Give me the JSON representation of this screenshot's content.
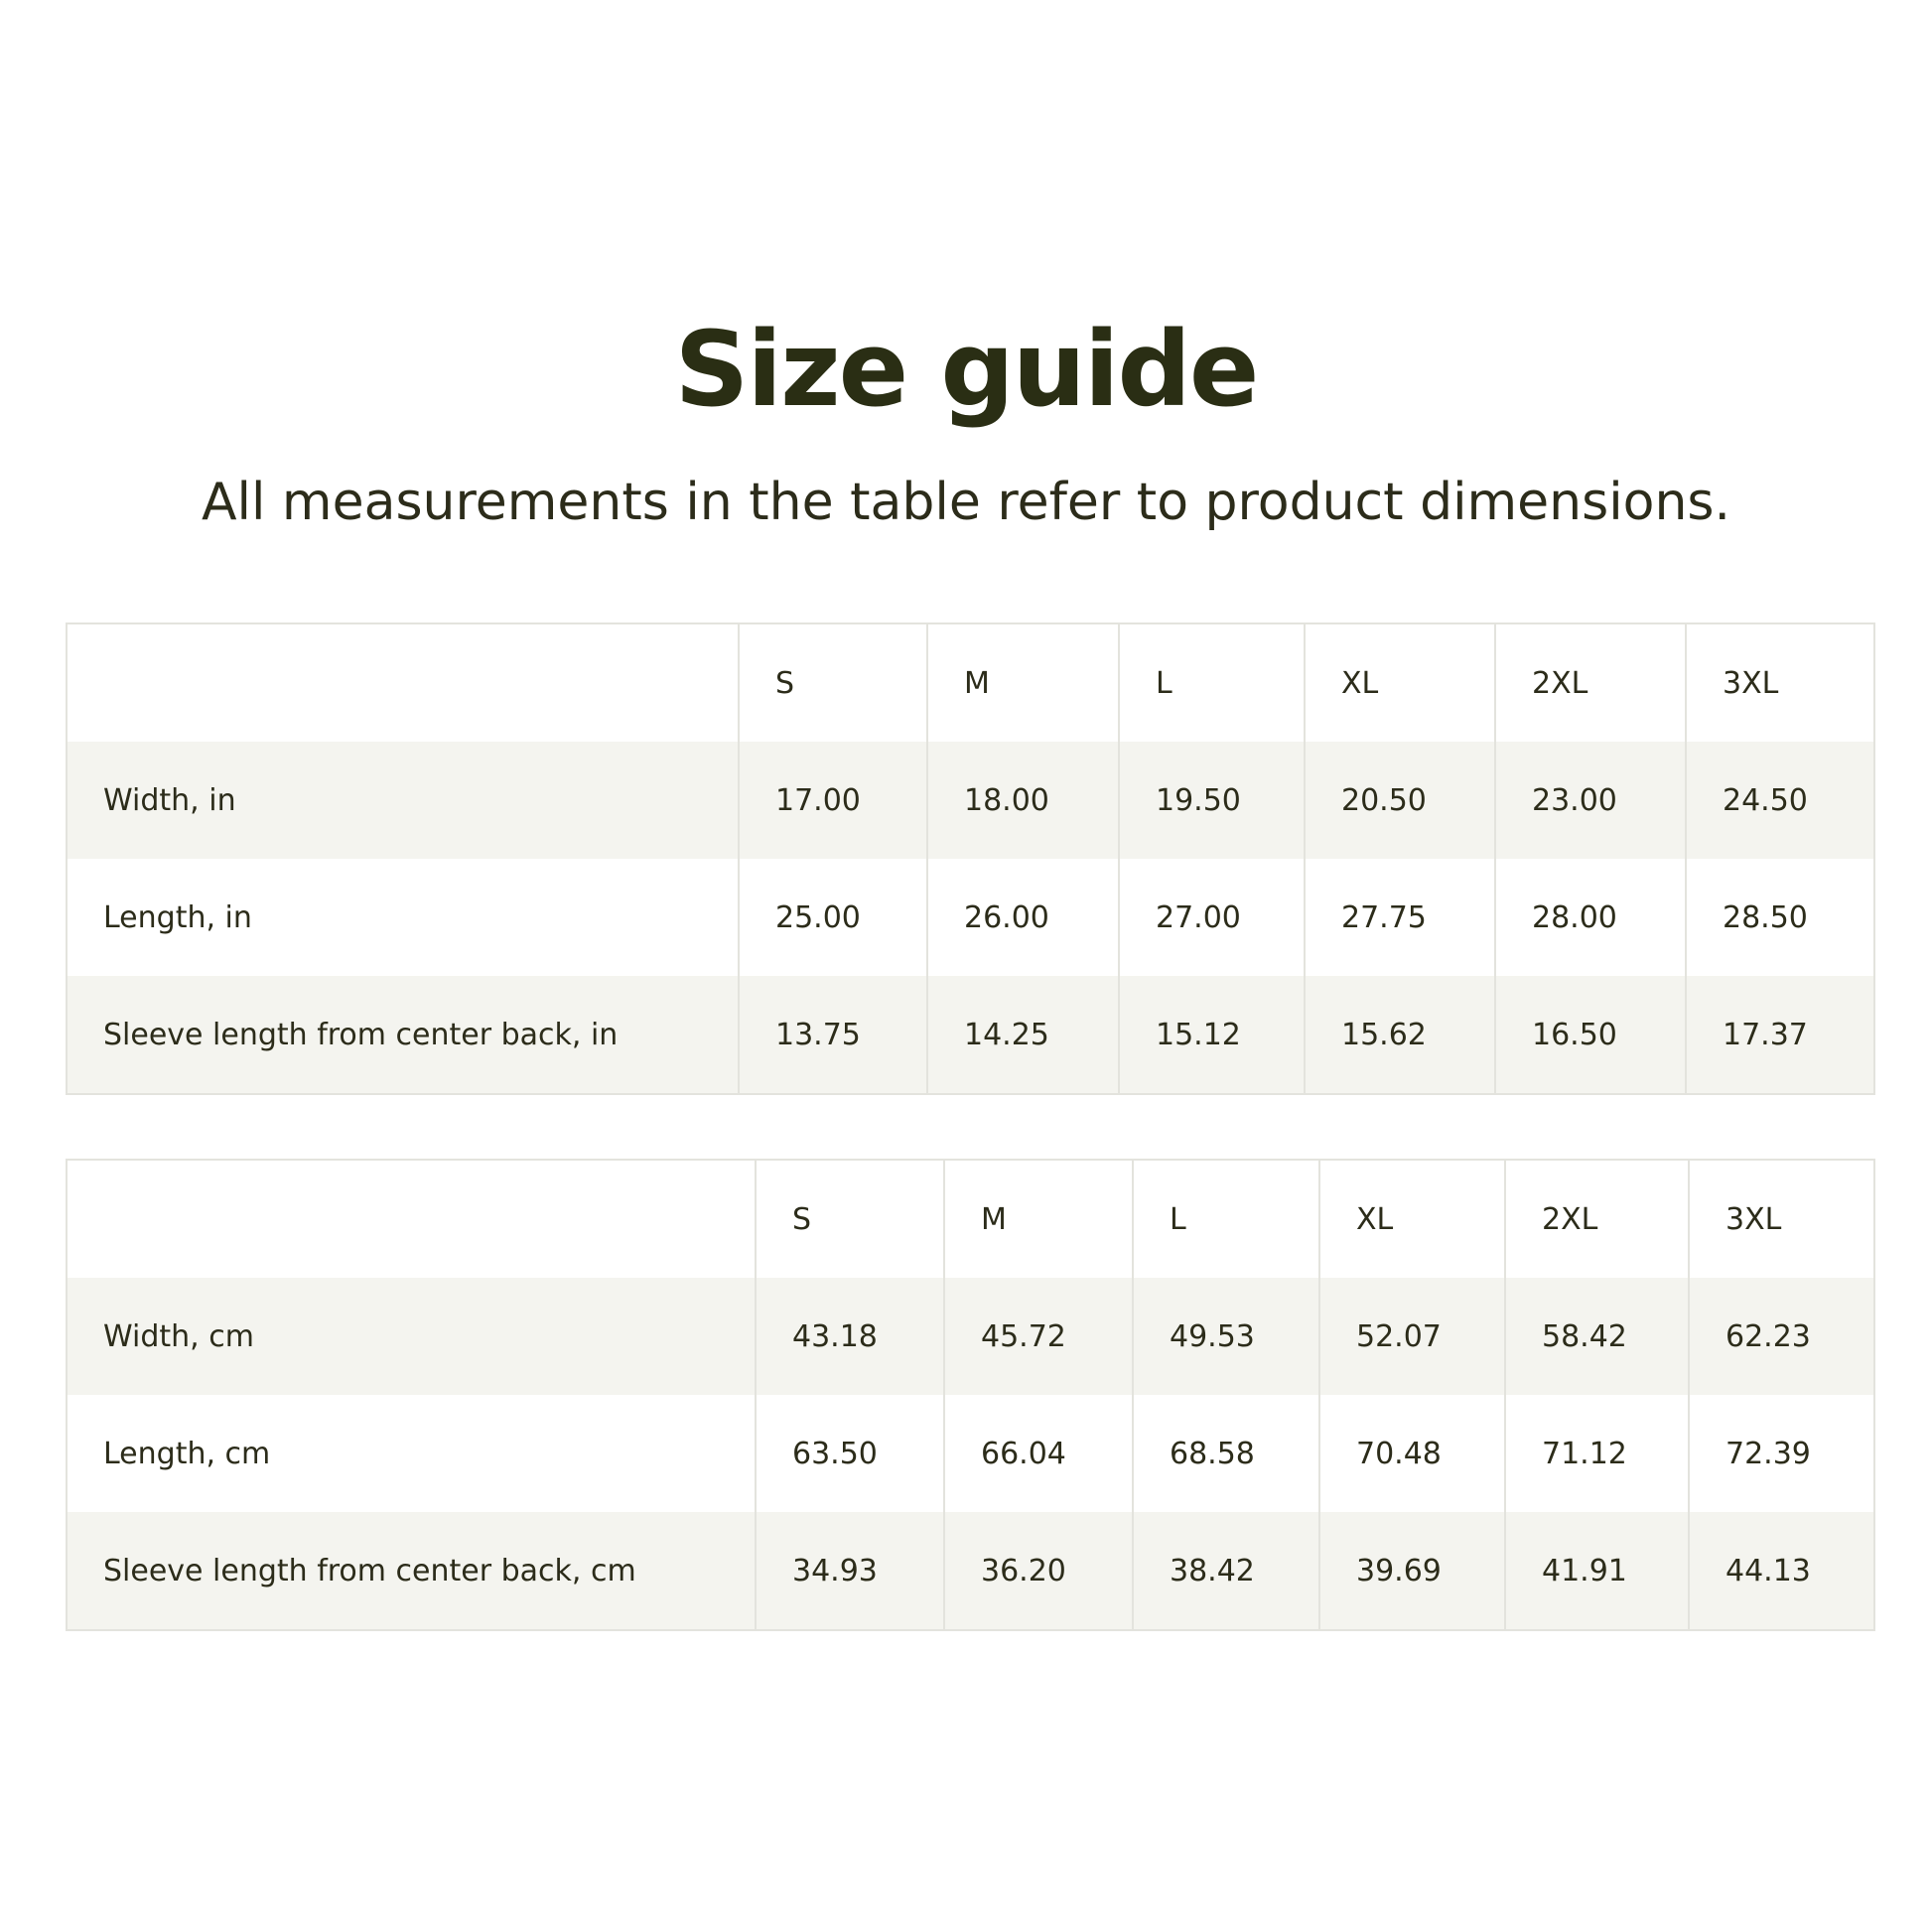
{
  "title": "Size guide",
  "subtitle": "All measurements in the table refer to product dimensions.",
  "tables": [
    {
      "columns": [
        "S",
        "M",
        "L",
        "XL",
        "2XL",
        "3XL"
      ],
      "rows": [
        {
          "label": "Width, in",
          "values": [
            "17.00",
            "18.00",
            "19.50",
            "20.50",
            "23.00",
            "24.50"
          ]
        },
        {
          "label": "Length, in",
          "values": [
            "25.00",
            "26.00",
            "27.00",
            "27.75",
            "28.00",
            "28.50"
          ]
        },
        {
          "label": "Sleeve length from center back, in",
          "values": [
            "13.75",
            "14.25",
            "15.12",
            "15.62",
            "16.50",
            "17.37"
          ]
        }
      ]
    },
    {
      "columns": [
        "S",
        "M",
        "L",
        "XL",
        "2XL",
        "3XL"
      ],
      "rows": [
        {
          "label": "Width, cm",
          "values": [
            "43.18",
            "45.72",
            "49.53",
            "52.07",
            "58.42",
            "62.23"
          ]
        },
        {
          "label": "Length, cm",
          "values": [
            "63.50",
            "66.04",
            "68.58",
            "70.48",
            "71.12",
            "72.39"
          ]
        },
        {
          "label": "Sleeve length from center back, cm",
          "values": [
            "34.93",
            "36.20",
            "38.42",
            "39.69",
            "41.91",
            "44.13"
          ]
        }
      ]
    }
  ]
}
